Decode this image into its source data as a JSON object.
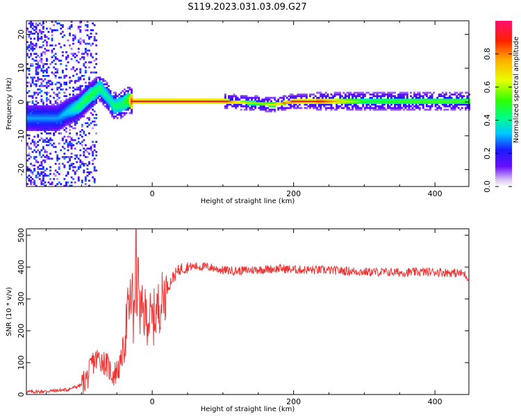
{
  "title": "S119.2023.031.03.09.G27",
  "chart_data": [
    {
      "type": "heatmap",
      "xlabel": "Height of straight line (km)",
      "ylabel": "Frequency (Hz)",
      "xlim": [
        -178,
        448
      ],
      "ylim": [
        -25,
        24
      ],
      "x_ticks": [
        0,
        200,
        400
      ],
      "y_ticks": [
        -20,
        -10,
        0,
        10,
        20
      ],
      "colorbar": {
        "label": "Normalized spectral amplitude",
        "range": [
          0,
          1
        ],
        "ticks": [
          0.0,
          0.2,
          0.4,
          0.6,
          0.8
        ]
      },
      "ridge": [
        {
          "x": -135,
          "f": -5.0,
          "amp": 0.3
        },
        {
          "x": -120,
          "f": -3.0,
          "amp": 0.35
        },
        {
          "x": -105,
          "f": -1.5,
          "amp": 0.45
        },
        {
          "x": -90,
          "f": 1.5,
          "amp": 0.5
        },
        {
          "x": -75,
          "f": 4.0,
          "amp": 0.45
        },
        {
          "x": -63,
          "f": 1.0,
          "amp": 0.4
        },
        {
          "x": -55,
          "f": -1.5,
          "amp": 0.45
        },
        {
          "x": -45,
          "f": -1.0,
          "amp": 0.45
        },
        {
          "x": -35,
          "f": 0.5,
          "amp": 0.55
        },
        {
          "x": -30,
          "f": 0.0,
          "amp": 0.95
        },
        {
          "x": 100,
          "f": 0.0,
          "amp": 0.95
        },
        {
          "x": 140,
          "f": -0.5,
          "amp": 0.6
        },
        {
          "x": 170,
          "f": -1.0,
          "amp": 0.7
        },
        {
          "x": 200,
          "f": 0.0,
          "amp": 0.95
        },
        {
          "x": 235,
          "f": 0.0,
          "amp": 0.9
        },
        {
          "x": 300,
          "f": 0.0,
          "amp": 0.5
        },
        {
          "x": 380,
          "f": 0.0,
          "amp": 0.55
        },
        {
          "x": 448,
          "f": 0.0,
          "amp": 0.55
        }
      ]
    },
    {
      "type": "line",
      "xlabel": "Height of straight line (km)",
      "ylabel": "SNR (10 * v/v)",
      "xlim": [
        -178,
        448
      ],
      "ylim": [
        0,
        520
      ],
      "x_ticks": [
        0,
        200,
        400
      ],
      "y_ticks": [
        0,
        100,
        200,
        300,
        400,
        500
      ],
      "color": "#ee3333",
      "x": [
        -178,
        -150,
        -120,
        -100,
        -90,
        -85,
        -75,
        -65,
        -55,
        -45,
        -40,
        -35,
        -30,
        -25,
        -20,
        -10,
        0,
        10,
        20,
        30,
        40,
        50,
        60,
        80,
        100,
        120,
        150,
        180,
        200,
        250,
        300,
        350,
        400,
        440,
        448
      ],
      "y": [
        8,
        10,
        15,
        30,
        60,
        100,
        115,
        95,
        60,
        90,
        160,
        250,
        300,
        330,
        260,
        250,
        230,
        280,
        330,
        370,
        395,
        400,
        402,
        400,
        390,
        388,
        392,
        395,
        392,
        390,
        385,
        383,
        385,
        380,
        365
      ],
      "spikes": [
        {
          "x": -23,
          "y": 520
        },
        {
          "x": -20,
          "y": 430
        },
        {
          "x": -27,
          "y": 160
        }
      ]
    }
  ]
}
